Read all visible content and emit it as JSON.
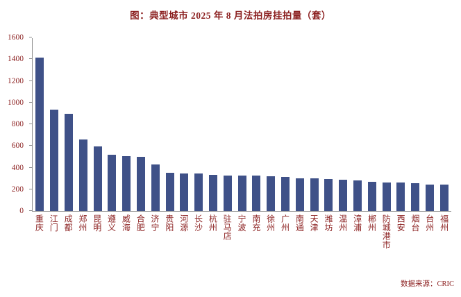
{
  "chart_data": {
    "type": "bar",
    "title": "图：典型城市 2025 年 8 月法拍房挂拍量（套）",
    "categories": [
      "重庆",
      "江门",
      "成都",
      "郑州",
      "昆明",
      "遵义",
      "威海",
      "合肥",
      "济宁",
      "贵阳",
      "河源",
      "长沙",
      "杭州",
      "驻马店",
      "宁波",
      "南充",
      "徐州",
      "广州",
      "南通",
      "天津",
      "潍坊",
      "温州",
      "漳浦",
      "郴州",
      "防城港市",
      "西安",
      "烟台",
      "台州",
      "福州"
    ],
    "values": [
      1420,
      940,
      900,
      660,
      600,
      520,
      510,
      500,
      430,
      355,
      350,
      345,
      335,
      330,
      330,
      325,
      320,
      315,
      305,
      300,
      295,
      290,
      280,
      270,
      265,
      265,
      260,
      245,
      245
    ],
    "xlabel": "",
    "ylabel": "",
    "ylim": [
      0,
      1600
    ],
    "yticks": [
      0,
      200,
      400,
      600,
      800,
      1000,
      1200,
      1400,
      1600
    ],
    "grid": false,
    "legend": "none",
    "bar_color": "#3F5188",
    "text_color": "#8B1F1F",
    "axis_color": "#8C8C8C"
  },
  "source": "数据来源：CRIC"
}
